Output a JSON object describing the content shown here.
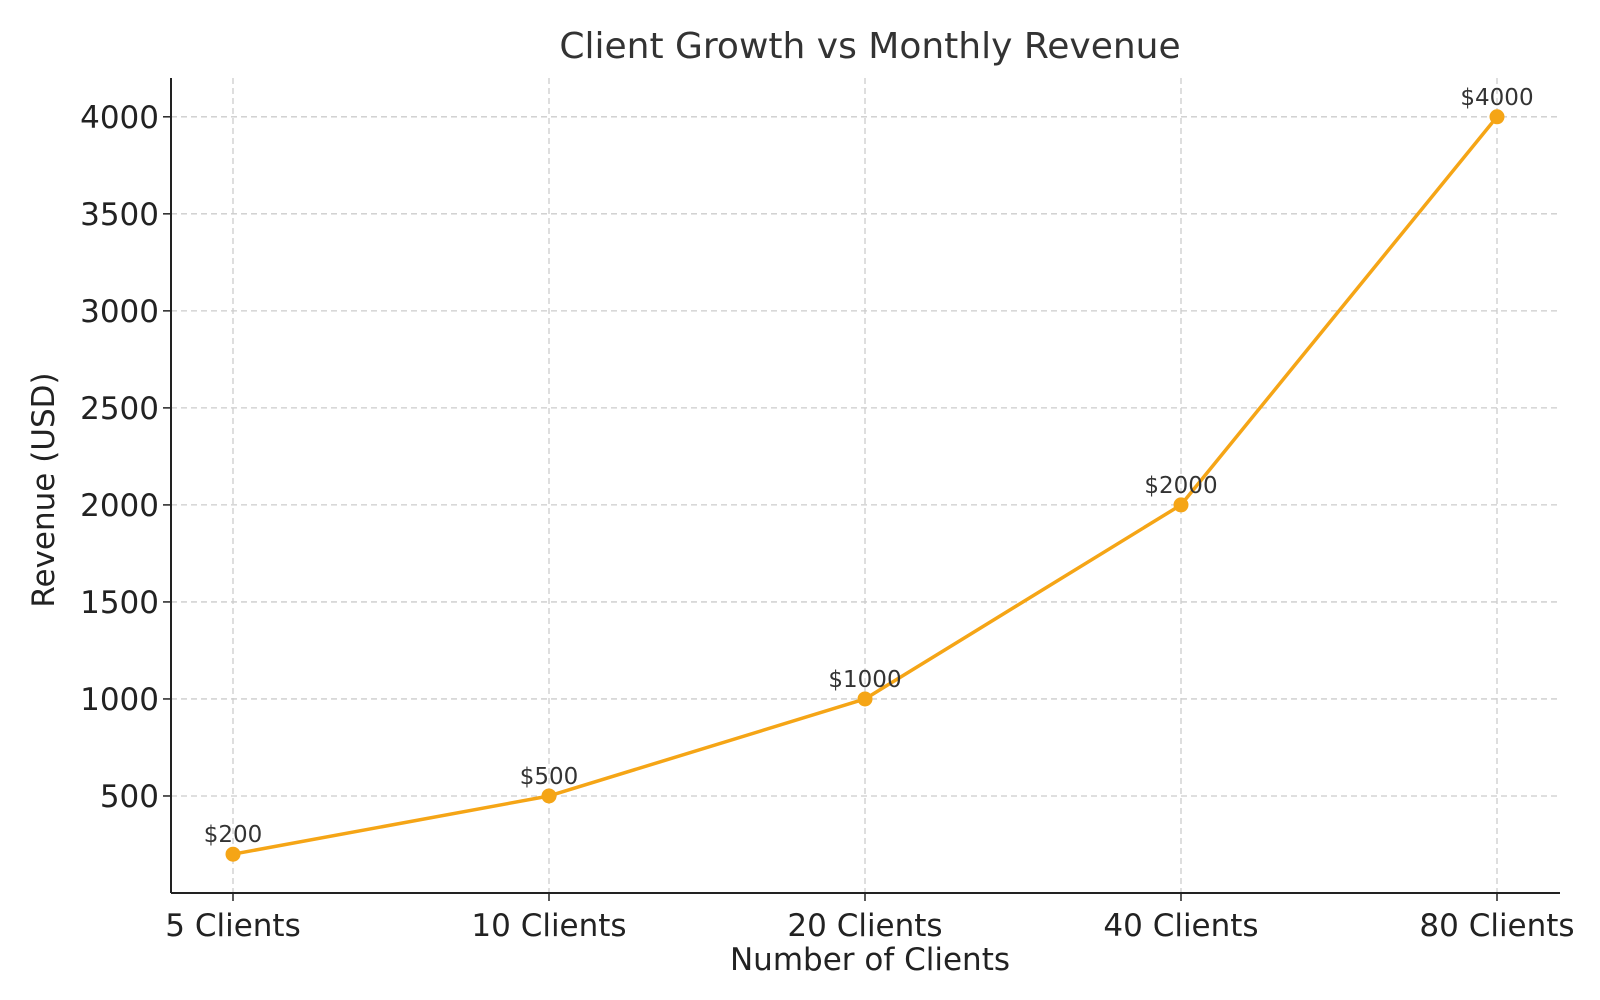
{
  "colors": {
    "series": "#f5a516",
    "grid": "#cccccc",
    "axis": "#222222",
    "text": "#333333",
    "background": "#ffffff"
  },
  "chart_data": {
    "type": "line",
    "title": "Client Growth vs Monthly Revenue",
    "xlabel": "Number of Clients",
    "ylabel": "Revenue (USD)",
    "categories": [
      "5 Clients",
      "10 Clients",
      "20 Clients",
      "40 Clients",
      "80 Clients"
    ],
    "series": [
      {
        "values": [
          200,
          500,
          1000,
          2000,
          4000
        ],
        "labels": [
          "$200",
          "$500",
          "$1000",
          "$2000",
          "$4000"
        ],
        "color": "#f5a516",
        "marker": "circle"
      }
    ],
    "ylim": [
      0,
      4200
    ],
    "yticks": [
      500,
      1000,
      1500,
      2000,
      2500,
      3000,
      3500,
      4000
    ],
    "grid": true,
    "legend": "none"
  }
}
